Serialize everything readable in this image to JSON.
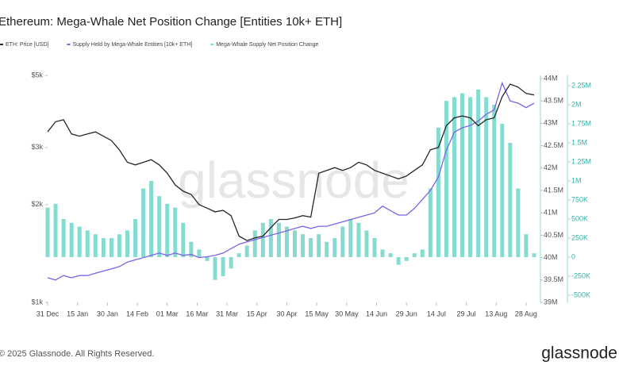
{
  "chart_data": {
    "type": "combo",
    "title": "Ethereum: Mega-Whale Net Position Change [Entities 10k+ ETH]",
    "watermark": "glassnode",
    "footer": "© 2025 Glassnode. All Rights Reserved.",
    "logo": "glassnode",
    "x": [
      0,
      4,
      8,
      12,
      16,
      20,
      24,
      28,
      32,
      36,
      40,
      44,
      48,
      52,
      56,
      60,
      64,
      68,
      72,
      76,
      80,
      84,
      88,
      92,
      96,
      100,
      104,
      108,
      112,
      116,
      120,
      124,
      128,
      132,
      136,
      140,
      144,
      148,
      152,
      156,
      160,
      164,
      168,
      172,
      176,
      180,
      184,
      188,
      192,
      196,
      200,
      204,
      208,
      212,
      216,
      220,
      224,
      228,
      232,
      236,
      240,
      244
    ],
    "xlim": [
      0,
      246
    ],
    "xticks": [
      {
        "value": 0,
        "label": "31 Dec"
      },
      {
        "value": 15,
        "label": "15 Jan"
      },
      {
        "value": 30,
        "label": "30 Jan"
      },
      {
        "value": 45,
        "label": "14 Feb"
      },
      {
        "value": 60,
        "label": "01 Mar"
      },
      {
        "value": 75,
        "label": "16 Mar"
      },
      {
        "value": 90,
        "label": "31 Mar"
      },
      {
        "value": 105,
        "label": "15 Apr"
      },
      {
        "value": 120,
        "label": "30 Apr"
      },
      {
        "value": 135,
        "label": "15 May"
      },
      {
        "value": 150,
        "label": "30 May"
      },
      {
        "value": 165,
        "label": "14 Jun"
      },
      {
        "value": 180,
        "label": "29 Jun"
      },
      {
        "value": 195,
        "label": "14 Jul"
      },
      {
        "value": 210,
        "label": "29 Jul"
      },
      {
        "value": 225,
        "label": "13 Aug"
      },
      {
        "value": 240,
        "label": "28 Aug"
      }
    ],
    "ylog": true,
    "ylim": [
      1000,
      5000
    ],
    "yticks": [
      {
        "value": 5000,
        "label": "$5k"
      },
      {
        "value": 3000,
        "label": "$3k"
      },
      {
        "value": 2000,
        "label": "$2k"
      },
      {
        "value": 1000,
        "label": "$1k"
      }
    ],
    "y2lim": [
      39000000,
      44070000
    ],
    "y2ticks": [
      {
        "value": 44000000,
        "label": "44M"
      },
      {
        "value": 43500000,
        "label": "43.5M"
      },
      {
        "value": 43000000,
        "label": "43M"
      },
      {
        "value": 42500000,
        "label": "42.5M"
      },
      {
        "value": 42000000,
        "label": "42M"
      },
      {
        "value": 41500000,
        "label": "41.5M"
      },
      {
        "value": 41000000,
        "label": "41M"
      },
      {
        "value": 40500000,
        "label": "40.5M"
      },
      {
        "value": 40000000,
        "label": "40M"
      },
      {
        "value": 39500000,
        "label": "39.5M"
      },
      {
        "value": 39000000,
        "label": "39M"
      }
    ],
    "y3lim": [
      -594000,
      2385000
    ],
    "y3ticks": [
      {
        "value": 2250000,
        "label": "2.25M"
      },
      {
        "value": 2000000,
        "label": "2M"
      },
      {
        "value": 1750000,
        "label": "1.75M"
      },
      {
        "value": 1500000,
        "label": "1.5M"
      },
      {
        "value": 1250000,
        "label": "1.25M"
      },
      {
        "value": 1000000,
        "label": "1M"
      },
      {
        "value": 750000,
        "label": "750K"
      },
      {
        "value": 500000,
        "label": "500K"
      },
      {
        "value": 250000,
        "label": "250K"
      },
      0,
      {
        "value": -250000,
        "label": "-250K"
      },
      {
        "value": -500000,
        "label": "-500K"
      }
    ],
    "series": [
      {
        "name": "Mega-Whale Supply Net Position Change",
        "type": "bar",
        "axis": "y3",
        "color": "#86dbd1",
        "values": [
          650000,
          700000,
          500000,
          450000,
          400000,
          350000,
          300000,
          250000,
          250000,
          300000,
          350000,
          500000,
          900000,
          1000000,
          800000,
          700000,
          650000,
          450000,
          200000,
          100000,
          -50000,
          -300000,
          -250000,
          -150000,
          50000,
          150000,
          350000,
          450000,
          500000,
          450000,
          400000,
          350000,
          300000,
          250000,
          300000,
          200000,
          250000,
          400000,
          500000,
          450000,
          350000,
          250000,
          100000,
          50000,
          -100000,
          -50000,
          50000,
          100000,
          900000,
          1700000,
          2050000,
          2100000,
          2150000,
          2100000,
          2200000,
          2100000,
          2000000,
          1750000,
          1500000,
          900000,
          300000,
          50000
        ]
      },
      {
        "name": "Supply Held by Mega-Whale Entities [10k+ ETH]",
        "type": "line",
        "axis": "y2",
        "color": "#7d63e6",
        "values": [
          39550000,
          39500000,
          39600000,
          39550000,
          39600000,
          39600000,
          39650000,
          39700000,
          39750000,
          39800000,
          39900000,
          39950000,
          40000000,
          40050000,
          40100000,
          40050000,
          40100000,
          40050000,
          40070000,
          40000000,
          40020000,
          40050000,
          40100000,
          40200000,
          40300000,
          40350000,
          40400000,
          40450000,
          40500000,
          40550000,
          40600000,
          40650000,
          40700000,
          40650000,
          40700000,
          40700000,
          40750000,
          40800000,
          40850000,
          40900000,
          40950000,
          41000000,
          41150000,
          41050000,
          40950000,
          40950000,
          41100000,
          41300000,
          41500000,
          41800000,
          42400000,
          42800000,
          42900000,
          42950000,
          43050000,
          43200000,
          43300000,
          43900000,
          43500000,
          43450000,
          43350000,
          43450000
        ]
      },
      {
        "name": "ETH: Price [USD]",
        "type": "line",
        "axis": "y",
        "color": "#262626",
        "values": [
          3350,
          3600,
          3650,
          3300,
          3250,
          3300,
          3350,
          3250,
          3150,
          2950,
          2700,
          2650,
          2700,
          2750,
          2650,
          2500,
          2300,
          2200,
          2150,
          2000,
          1950,
          1900,
          1920,
          1850,
          1600,
          1550,
          1580,
          1600,
          1700,
          1800,
          1800,
          1820,
          1850,
          1830,
          2500,
          2550,
          2600,
          2550,
          2600,
          2700,
          2650,
          2550,
          2500,
          2450,
          2400,
          2450,
          2550,
          2650,
          2950,
          3000,
          3500,
          3700,
          3750,
          3700,
          3500,
          3650,
          3700,
          4300,
          4700,
          4600,
          4400,
          4350
        ]
      }
    ]
  }
}
